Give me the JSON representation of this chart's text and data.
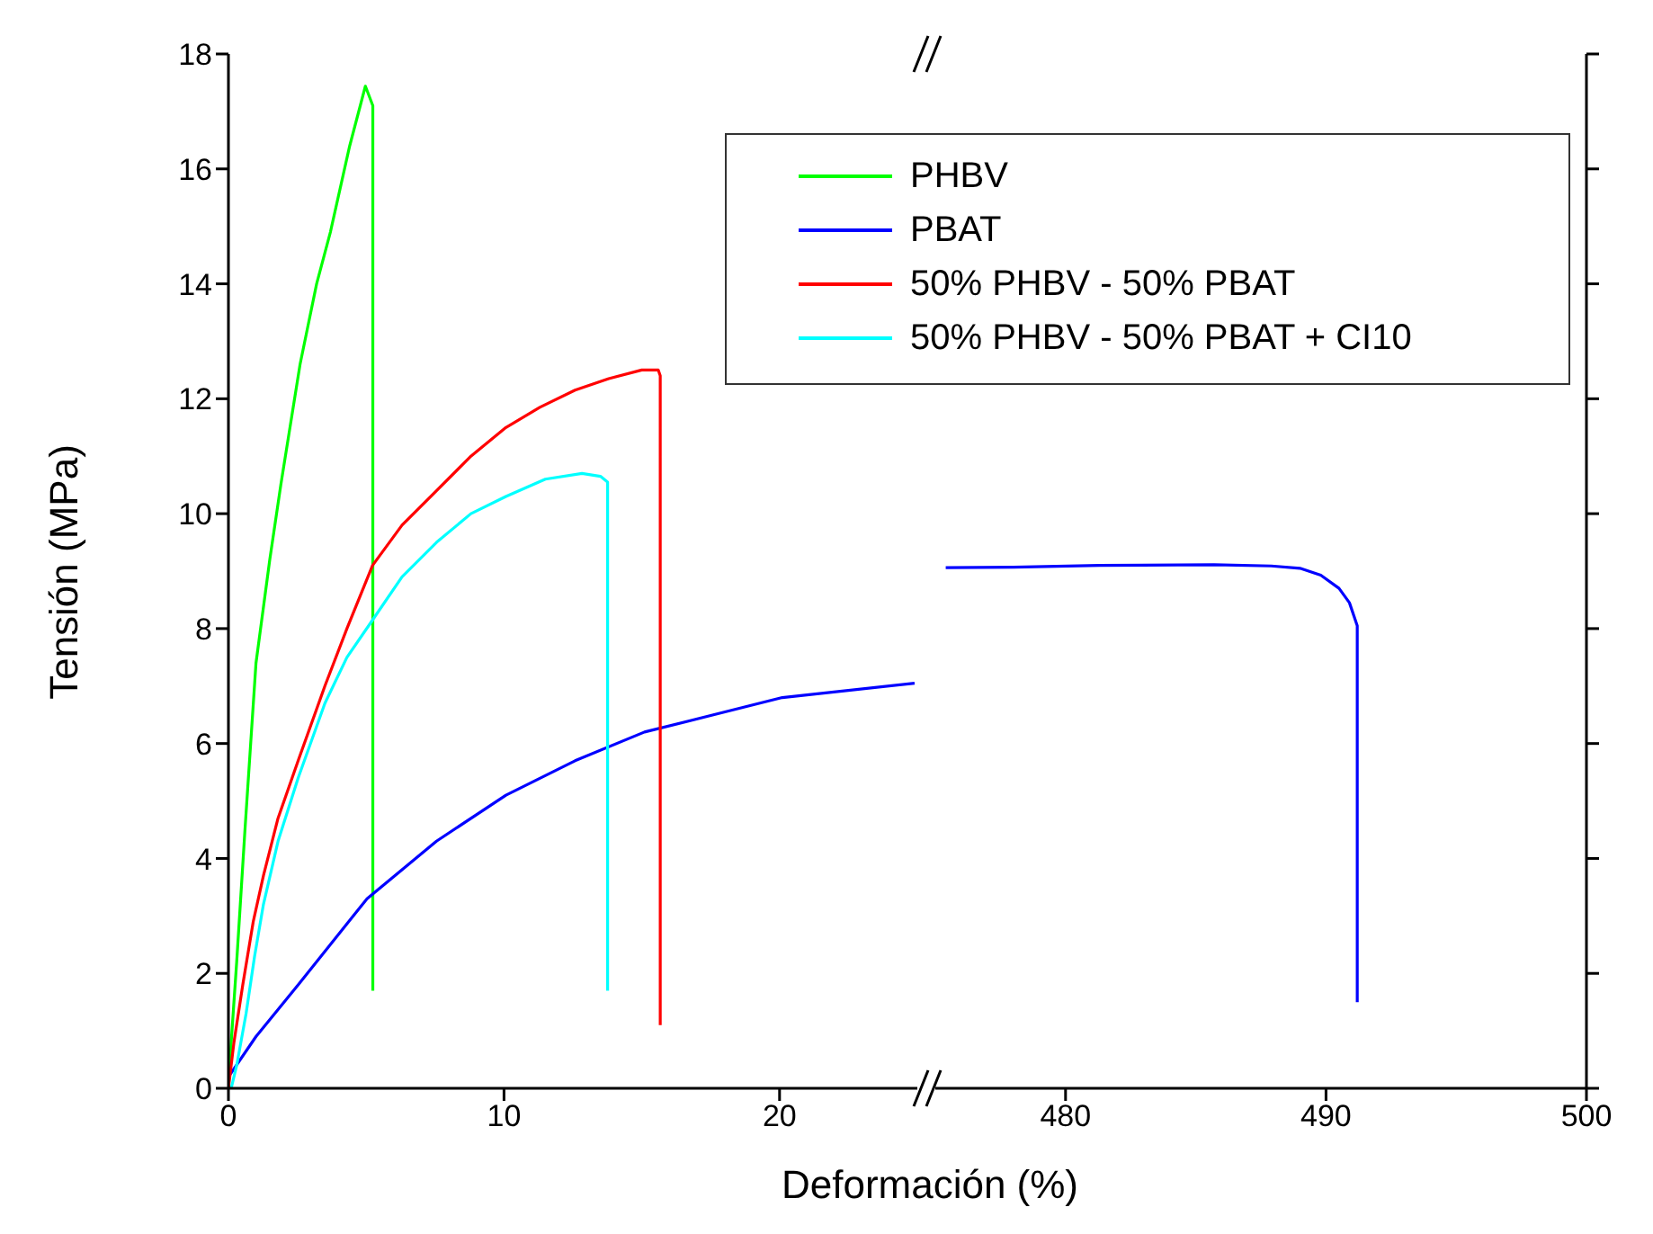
{
  "chart_data": [
    {
      "type": "line",
      "xlabel": "Deformación (%)",
      "ylabel": "Tensión (MPa)",
      "xlim": [
        0,
        25
      ],
      "xticks": [
        0,
        10,
        20
      ],
      "ylim": [
        0,
        18
      ],
      "yticks": [
        0,
        2,
        4,
        6,
        8,
        10,
        12,
        14,
        16,
        18
      ],
      "legend": "top right",
      "grid": false,
      "series": [
        {
          "name": "PHBV",
          "color": "#00ff00",
          "x": [
            0,
            0.1,
            0.3,
            0.6,
            1.0,
            1.5,
            1.9,
            2.6,
            3.2,
            3.7,
            4.4,
            4.97,
            5.24,
            5.24
          ],
          "values": [
            0,
            0.8,
            2.2,
            4.5,
            7.4,
            9.2,
            10.5,
            12.6,
            14,
            14.9,
            16.4,
            17.44,
            17.1,
            1.7
          ]
        },
        {
          "name": "PBAT",
          "color": "#0000ff",
          "x": [
            0,
            1,
            2.53,
            5.03,
            7.55,
            10.07,
            12.58,
            15.1,
            17.6,
            20.1,
            24.9
          ],
          "values": [
            0.2,
            0.9,
            1.8,
            3.3,
            4.3,
            5.1,
            5.7,
            6.2,
            6.5,
            6.8,
            7.05
          ]
        },
        {
          "name": "50% PHBV - 50% PBAT",
          "color": "#ff0000",
          "x": [
            0,
            0.2,
            0.52,
            0.9,
            1.27,
            1.8,
            2.53,
            3.5,
            4.3,
            5.23,
            6.3,
            7.55,
            8.8,
            10.07,
            11.3,
            12.58,
            13.8,
            15,
            15.6,
            15.67,
            15.67
          ],
          "values": [
            0,
            0.8,
            1.8,
            2.9,
            3.7,
            4.7,
            5.7,
            7,
            8,
            9.1,
            9.8,
            10.4,
            11,
            11.5,
            11.85,
            12.15,
            12.35,
            12.5,
            12.5,
            12.4,
            1.1
          ]
        },
        {
          "name": "50% PHBV - 50% PBAT + CI10",
          "color": "#00ffff",
          "x": [
            0.1,
            0.3,
            0.64,
            0.95,
            1.27,
            1.8,
            2.53,
            3.5,
            4.3,
            5.16,
            6.3,
            7.55,
            8.8,
            10.07,
            11.5,
            12.83,
            13.5,
            13.76,
            13.76
          ],
          "values": [
            0,
            0.4,
            1.3,
            2.3,
            3.2,
            4.3,
            5.4,
            6.7,
            7.5,
            8.1,
            8.9,
            9.5,
            10,
            10.3,
            10.6,
            10.7,
            10.65,
            10.55,
            1.7
          ]
        }
      ]
    },
    {
      "type": "line",
      "xlim": [
        475,
        500
      ],
      "xticks": [
        480,
        490,
        500
      ],
      "ylim": [
        0,
        18
      ],
      "yticks": [
        0,
        2,
        4,
        6,
        8,
        10,
        12,
        14,
        16,
        18
      ],
      "tick_labels": "x",
      "grid": false,
      "series": [
        {
          "color": "#0000ff",
          "x": [
            475.4,
            478,
            481.3,
            485.7,
            487.9,
            489,
            489.8,
            490.5,
            490.9,
            491.2,
            491.2
          ],
          "values": [
            9.06,
            9.07,
            9.1,
            9.11,
            9.09,
            9.05,
            8.93,
            8.7,
            8.45,
            8.05,
            1.5
          ]
        }
      ]
    }
  ]
}
